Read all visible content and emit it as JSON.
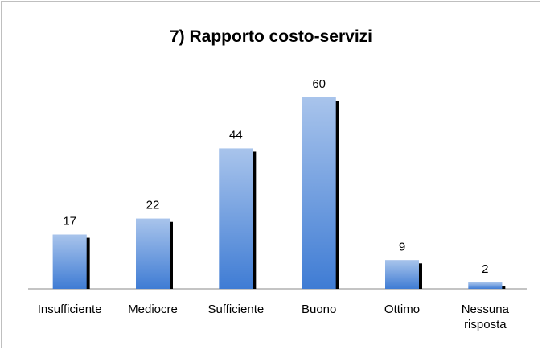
{
  "chart_data": {
    "type": "bar",
    "title": "7) Rapporto costo-servizi",
    "categories": [
      "Insufficiente",
      "Mediocre",
      "Sufficiente",
      "Buono",
      "Ottimo",
      "Nessuna risposta"
    ],
    "values": [
      17,
      22,
      44,
      60,
      9,
      2
    ],
    "color": "#3f7cd4"
  }
}
